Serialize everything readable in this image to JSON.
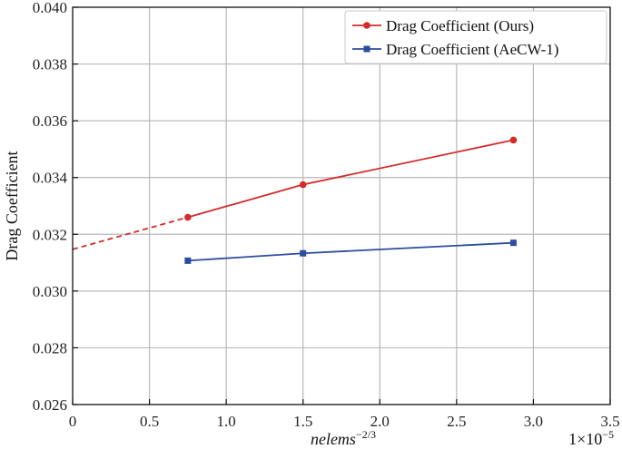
{
  "chart_data": {
    "type": "line",
    "xlabel": "nelems",
    "xlabel_superscript": "−2/3",
    "ylabel": "Drag Coefficient",
    "x_multiplier_label": "1×10",
    "x_multiplier_exponent": "−5",
    "xlim": [
      0,
      3.5
    ],
    "ylim": [
      0.026,
      0.04
    ],
    "xticks": [
      0,
      0.5,
      1.0,
      1.5,
      2.0,
      2.5,
      3.0,
      3.5
    ],
    "xtick_labels": [
      "0",
      "0.5",
      "1.0",
      "1.5",
      "2.0",
      "2.5",
      "3.0",
      "3.5"
    ],
    "yticks": [
      0.026,
      0.028,
      0.03,
      0.032,
      0.034,
      0.036,
      0.038,
      0.04
    ],
    "ytick_labels": [
      "0.026",
      "0.028",
      "0.030",
      "0.032",
      "0.034",
      "0.036",
      "0.038",
      "0.040"
    ],
    "grid": true,
    "legend_position": "top-right",
    "series": [
      {
        "name": "Drag Coefficient (Ours)",
        "color": "#d42a2a",
        "marker": "circle",
        "x": [
          0.75,
          1.5,
          2.87
        ],
        "y": [
          0.0326,
          0.03375,
          0.03532
        ],
        "extrapolation": {
          "x": [
            0,
            0.75
          ],
          "y": [
            0.03147,
            0.0326
          ],
          "style": "dashed"
        }
      },
      {
        "name": "Drag Coefficient (AeCW-1)",
        "color": "#2c4da0",
        "marker": "square",
        "x": [
          0.75,
          1.5,
          2.87
        ],
        "y": [
          0.03107,
          0.03133,
          0.0317
        ]
      }
    ]
  }
}
